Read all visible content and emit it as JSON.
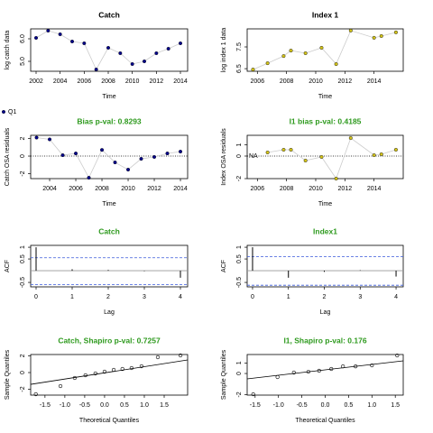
{
  "chart_data": [
    {
      "type": "line",
      "title": "Catch",
      "title_color": "#000000",
      "xlabel": "Time",
      "ylabel": "log catch data",
      "x": [
        2002,
        2003,
        2004,
        2005,
        2006,
        2007,
        2008,
        2009,
        2010,
        2011,
        2012,
        2013,
        2014
      ],
      "xlim": [
        2001.55,
        2014.6
      ],
      "xticks": [
        2002,
        2004,
        2006,
        2008,
        2010,
        2012,
        2014
      ],
      "ylim": [
        4.56,
        6.44
      ],
      "yticks": [
        {
          "value": 5,
          "label": "5.0"
        },
        {
          "value": 6,
          "label": "6.0"
        }
      ],
      "line_color": "#cccccc",
      "series": [
        {
          "name": "Q1",
          "color": "#00008b",
          "values": [
            6.04,
            6.36,
            6.2,
            5.88,
            5.8,
            4.64,
            5.6,
            5.36,
            4.88,
            5.0,
            5.36,
            5.56,
            5.8
          ]
        }
      ]
    },
    {
      "type": "line",
      "title": "Index 1",
      "title_color": "#000000",
      "xlabel": "Time",
      "ylabel": "log index 1 data",
      "x": [
        2005.7,
        2006.7,
        2007.8,
        2008.3,
        2009.3,
        2010.4,
        2011.4,
        2012.4,
        2014,
        2014.5,
        2015.5
      ],
      "xlim": [
        2005.3,
        2016
      ],
      "xticks": [
        2006,
        2008,
        2010,
        2012,
        2014
      ],
      "ylim": [
        6.38,
        8.33
      ],
      "yticks": [
        6.5,
        7.5
      ],
      "line_color": "#cccccc",
      "series": [
        {
          "color": "#d4c41a",
          "values": [
            6.46,
            6.75,
            7.08,
            7.33,
            7.21,
            7.46,
            6.71,
            8.25,
            7.92,
            8.0,
            8.17
          ]
        }
      ]
    },
    {
      "type": "line",
      "title": "Bias p-val: 0.8293",
      "title_color": "#2e9a1e",
      "xlabel": "Time",
      "ylabel": "Catch OSA residuals",
      "x": [
        2003,
        2004,
        2005,
        2006,
        2007,
        2008,
        2009,
        2010,
        2011,
        2012,
        2013,
        2014
      ],
      "xlim": [
        2002.55,
        2014.55
      ],
      "xticks": [
        2004,
        2006,
        2008,
        2010,
        2012,
        2014
      ],
      "ylim": [
        -2.56,
        2.36
      ],
      "yticks": [
        -2,
        0,
        2
      ],
      "ref_line": 0,
      "ref_style": "dotted",
      "line_color": "#cccccc",
      "series": [
        {
          "color": "#00008b",
          "values": [
            2.1,
            1.9,
            0.1,
            0.3,
            -2.46,
            0.7,
            -0.72,
            -1.54,
            -0.31,
            -0.1,
            0.3,
            0.51
          ]
        }
      ]
    },
    {
      "type": "line",
      "title": "I1 bias p-val: 0.4185",
      "title_color": "#2e9a1e",
      "xlabel": "Time",
      "ylabel": "Index OSA residuals",
      "x": [
        2006.7,
        2007.8,
        2008.3,
        2009.3,
        2010.4,
        2011.4,
        2012.4,
        2014,
        2014.5,
        2015.5
      ],
      "xlim": [
        2005.3,
        2016
      ],
      "xticks": [
        2006,
        2008,
        2010,
        2012,
        2014
      ],
      "ylim": [
        -2,
        1.84
      ],
      "yticks": [
        -2,
        0,
        1
      ],
      "ref_line": 0,
      "ref_style": "dotted",
      "annotations": [
        "NA"
      ],
      "line_color": "#cccccc",
      "series": [
        {
          "color": "#d4c41a",
          "values": [
            0.32,
            0.56,
            0.56,
            -0.4,
            -0.08,
            -2.0,
            1.6,
            0.08,
            0.16,
            0.56
          ]
        }
      ]
    },
    {
      "type": "acf",
      "title": "Catch",
      "title_color": "#2e9a1e",
      "xlabel": "Lag",
      "ylabel": "ACF",
      "x": [
        0,
        1,
        2,
        3,
        4
      ],
      "xlim": [
        -0.15,
        4.2
      ],
      "xticks": [
        0,
        1,
        2,
        3,
        4
      ],
      "ylim": [
        -0.69,
        1.08
      ],
      "yticks": [
        -0.5,
        0.5,
        1
      ],
      "ref_line": 0,
      "ref_style": "solid",
      "conf_limits": [
        0.55,
        -0.6
      ],
      "conf_color": "#3b5bdb",
      "series": [
        {
          "color": "#000000",
          "values": [
            1,
            0.06,
            0.03,
            -0.02,
            -0.3
          ]
        }
      ]
    },
    {
      "type": "acf",
      "title": "Index1",
      "title_color": "#2e9a1e",
      "xlabel": "Lag",
      "ylabel": "ACF",
      "x": [
        0,
        1,
        2,
        3,
        4
      ],
      "xlim": [
        -0.15,
        4.2
      ],
      "xticks": [
        0,
        1,
        2,
        3,
        4
      ],
      "ylim": [
        -0.69,
        1.08
      ],
      "yticks": [
        -0.5,
        0.5,
        1
      ],
      "ref_line": 0,
      "ref_style": "solid",
      "conf_limits": [
        0.6,
        -0.62
      ],
      "conf_color": "#3b5bdb",
      "series": [
        {
          "color": "#000000",
          "values": [
            1,
            -0.3,
            -0.05,
            0.02,
            -0.25
          ]
        }
      ]
    },
    {
      "type": "qq",
      "title": "Catch, Shapiro p-val: 0.7257",
      "title_color": "#2e9a1e",
      "xlabel": "Theoretical Quantiles",
      "ylabel": "Sample Quantiles",
      "x": [
        -1.73,
        -1.11,
        -0.75,
        -0.48,
        -0.23,
        0,
        0.23,
        0.45,
        0.68,
        0.93,
        1.34,
        1.91
      ],
      "xlim": [
        -1.86,
        2.09
      ],
      "xticks": [
        -1.5,
        {
          "value": -1,
          "label": "-1.0"
        },
        -0.5,
        {
          "value": 0,
          "label": "0.0"
        },
        0.5,
        {
          "value": 1,
          "label": "1.0"
        },
        1.5
      ],
      "ylim": [
        -2.7,
        2.16
      ],
      "yticks": [
        -2,
        0,
        2
      ],
      "qqline": {
        "x": [
          -1.86,
          2.09
        ],
        "y": [
          -1.41,
          1.51
        ]
      },
      "series": [
        {
          "color": "#000000",
          "values": [
            -2.59,
            -1.62,
            -0.65,
            -0.32,
            -0.11,
            0.11,
            0.32,
            0.43,
            0.54,
            0.76,
            1.84,
            2.05
          ]
        }
      ]
    },
    {
      "type": "qq",
      "title": "I1, Shapiro p-val: 0.176",
      "title_color": "#2e9a1e",
      "xlabel": "Theoretical Quantiles",
      "ylabel": "Sample Quantiles",
      "x": [
        -1.54,
        -1.02,
        -0.67,
        -0.36,
        -0.13,
        0.13,
        0.38,
        0.65,
        1.0,
        1.54
      ],
      "xlim": [
        -1.67,
        1.67
      ],
      "xticks": [
        -1.5,
        {
          "value": -1,
          "label": "-1.0"
        },
        -0.5,
        {
          "value": 0,
          "label": "0.0"
        },
        0.5,
        {
          "value": 1,
          "label": "1.0"
        },
        1.5
      ],
      "ylim": [
        -2.05,
        1.8
      ],
      "yticks": [
        -2,
        0,
        1
      ],
      "qqline": {
        "x": [
          -1.67,
          1.67
        ],
        "y": [
          -0.51,
          1.2
        ]
      },
      "series": [
        {
          "color": "#000000",
          "values": [
            -1.97,
            -0.34,
            0.09,
            0.17,
            0.26,
            0.43,
            0.68,
            0.68,
            0.77,
            1.71
          ]
        }
      ]
    }
  ]
}
